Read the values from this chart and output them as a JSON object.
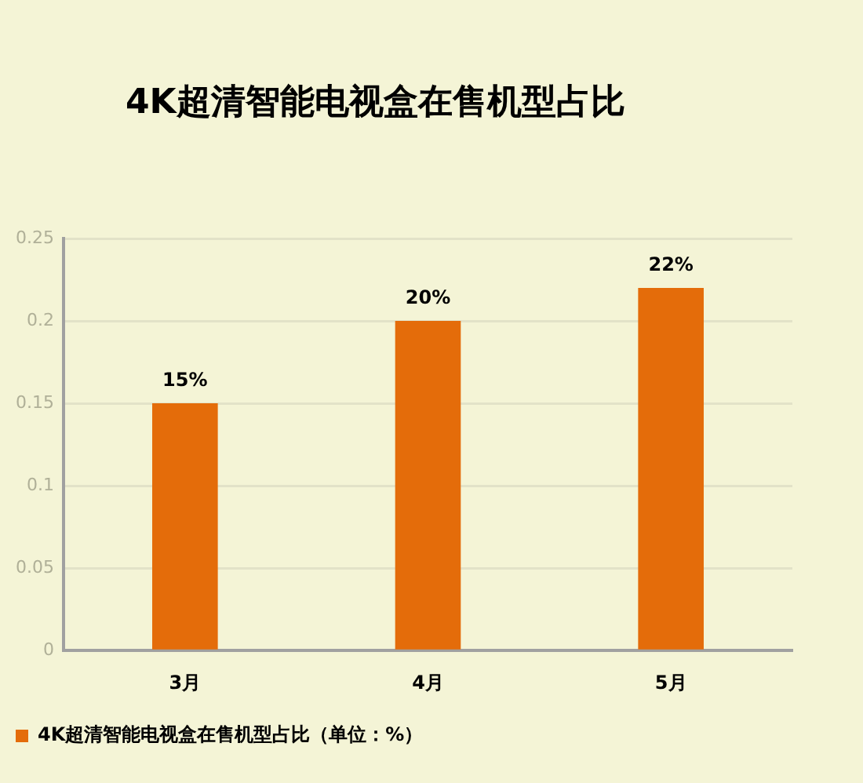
{
  "chart_data": {
    "type": "bar",
    "title": "4K超清智能电视盒在售机型占比",
    "categories": [
      "3月",
      "4月",
      "5月"
    ],
    "series": [
      {
        "name": "4K超清智能电视盒在售机型占比（单位：%）",
        "color": "#e46c0a",
        "values": [
          0.15,
          0.2,
          0.22
        ],
        "value_labels": [
          "15%",
          "20%",
          "22%"
        ]
      }
    ],
    "ylim": [
      0,
      0.25
    ],
    "yticks": [
      0,
      0.05,
      0.1,
      0.15,
      0.2,
      0.25
    ],
    "grid": "y",
    "legend": "bottom left"
  }
}
